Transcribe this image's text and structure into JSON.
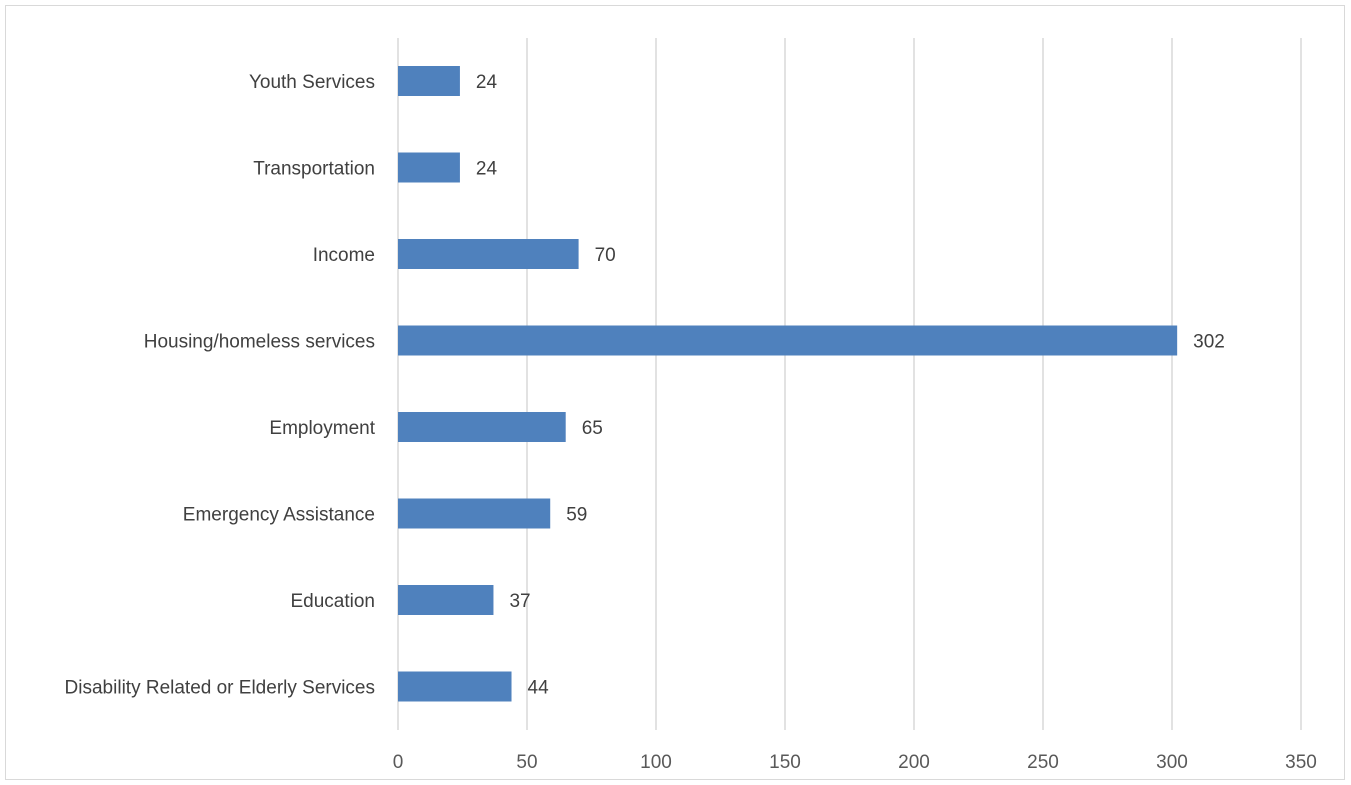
{
  "chart_data": {
    "type": "bar",
    "orientation": "horizontal",
    "categories": [
      "Youth Services",
      "Transportation",
      "Income",
      "Housing/homeless services",
      "Employment",
      "Emergency Assistance",
      "Education",
      "Disability Related or Elderly Services"
    ],
    "values": [
      24,
      24,
      70,
      302,
      65,
      59,
      37,
      44
    ],
    "xlim": [
      0,
      350
    ],
    "xticks": [
      0,
      50,
      100,
      150,
      200,
      250,
      300,
      350
    ],
    "grid": "vertical",
    "data_labels": true,
    "bar_color": "#4f81bd",
    "grid_color": "#d9d9d9",
    "title": "",
    "xlabel": "",
    "ylabel": ""
  }
}
